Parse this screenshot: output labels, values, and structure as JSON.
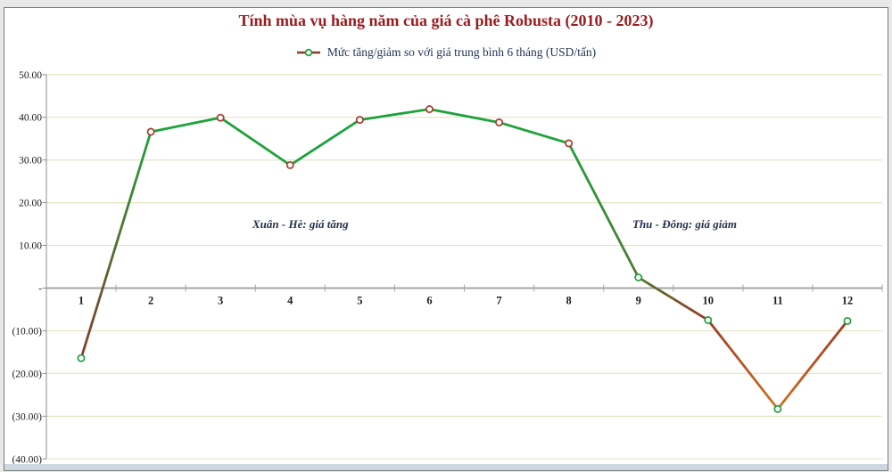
{
  "title": "Tính mùa vụ hàng năm của giá cà phê Robusta (2010 - 2023)",
  "legend": {
    "label": "Mức tăng/giảm so với giá trung bình 6 tháng (USD/tấn)"
  },
  "annotations": {
    "spring_summer": "Xuân - Hè: giá tăng",
    "autumn_winter": "Thu - Đông: giá giảm"
  },
  "colors": {
    "title_text": "#9b1b1e",
    "legend_text": "#1f3252",
    "annotation_text": "#26304a",
    "axis_text": "#1a1a1a",
    "gridline": "#e4e4c4",
    "zero_axis": "#a6a6a6",
    "y_axis": "#8c8c8c",
    "line_green": "#1da23a",
    "line_olive": "#4f7a2f",
    "line_red": "#9c3a28",
    "line_maroon": "#8a3a2a",
    "line_orange": "#d2711f",
    "marker_ring_positive": "#a93a2b",
    "marker_ring_negative": "#1e9e3c",
    "marker_fill": "#ffffff",
    "bottom_strip": "#ccd7e1"
  },
  "chart_data": {
    "type": "line",
    "title": "Tính mùa vụ hàng năm của giá cà phê Robusta (2010 - 2023)",
    "series": [
      {
        "name": "Mức tăng/giảm so với giá trung bình 6 tháng (USD/tấn)",
        "values": [
          -16.4,
          36.6,
          39.9,
          28.8,
          39.4,
          41.9,
          38.8,
          33.9,
          2.5,
          -7.5,
          -28.3,
          -7.7
        ]
      }
    ],
    "categories": [
      "1",
      "2",
      "3",
      "4",
      "5",
      "6",
      "7",
      "8",
      "9",
      "10",
      "11",
      "12"
    ],
    "ylim": [
      -40,
      50
    ],
    "ytick_step": 10,
    "ytick_labels_top_to_bottom": [
      "50.00",
      "40.00",
      "30.00",
      "20.00",
      "10.00",
      "-",
      "(10.00)",
      "(20.00)",
      "(30.00)",
      "(40.00)"
    ],
    "grid": true,
    "legend_position": "top",
    "annotations": [
      "Xuân - Hè: giá tăng",
      "Thu - Đông: giá giảm"
    ]
  }
}
